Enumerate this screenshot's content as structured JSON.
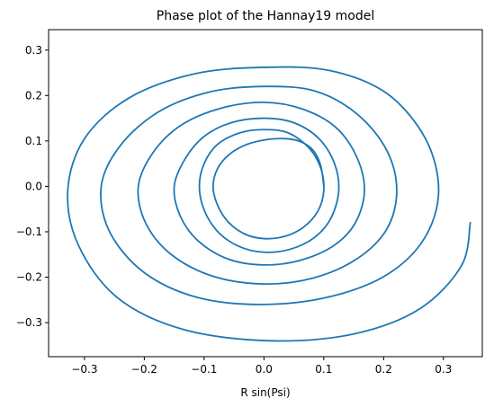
{
  "chart_data": {
    "type": "line",
    "title": "Phase plot of the Hannay19 model",
    "xlabel": "R sin(Psi)",
    "ylabel": "",
    "xlim": [
      -0.36,
      0.365
    ],
    "ylim": [
      -0.375,
      0.345
    ],
    "xticks": [
      -0.3,
      -0.2,
      -0.1,
      0.0,
      0.1,
      0.2,
      0.3
    ],
    "xtick_labels": [
      "−0.3",
      "−0.2",
      "−0.1",
      "0.0",
      "0.1",
      "0.2",
      "0.3"
    ],
    "yticks": [
      -0.3,
      -0.2,
      -0.1,
      0.0,
      0.1,
      0.2,
      0.3
    ],
    "ytick_labels": [
      "−0.3",
      "−0.2",
      "−0.1",
      "0.0",
      "0.1",
      "0.2",
      "0.3"
    ],
    "grid": false,
    "series": [
      {
        "color": "#1f77b4",
        "description": "outward spiral, counter-clockwise, from (0.10, 0.00) to (0.345, -0.08)",
        "x": [
          0.1,
          0.095,
          0.083,
          0.062,
          0.035,
          0.0,
          -0.033,
          -0.06,
          -0.078,
          -0.085,
          -0.078,
          -0.06,
          -0.032,
          0.0,
          0.035,
          0.066,
          0.09,
          0.1,
          0.095,
          0.075,
          0.04,
          0.0,
          -0.04,
          -0.078,
          -0.1,
          -0.108,
          -0.1,
          -0.077,
          -0.042,
          0.0,
          0.045,
          0.085,
          0.112,
          0.125,
          0.118,
          0.092,
          0.05,
          0.0,
          -0.055,
          -0.1,
          -0.132,
          -0.15,
          -0.14,
          -0.11,
          -0.06,
          0.0,
          0.06,
          0.115,
          0.152,
          0.168,
          0.155,
          0.12,
          0.065,
          0.0,
          -0.072,
          -0.138,
          -0.185,
          -0.21,
          -0.198,
          -0.155,
          -0.085,
          0.0,
          0.082,
          0.155,
          0.205,
          0.222,
          0.205,
          0.155,
          0.085,
          0.0,
          -0.09,
          -0.175,
          -0.24,
          -0.272,
          -0.258,
          -0.2,
          -0.11,
          0.0,
          0.11,
          0.205,
          0.268,
          0.292,
          0.27,
          0.205,
          0.11,
          0.0,
          -0.115,
          -0.225,
          -0.3,
          -0.328,
          -0.31,
          -0.245,
          -0.135,
          0.01,
          0.15,
          0.26,
          0.33,
          0.345
        ],
        "y": [
          0.0,
          0.045,
          0.078,
          0.098,
          0.105,
          0.102,
          0.09,
          0.068,
          0.038,
          0.0,
          -0.04,
          -0.078,
          -0.105,
          -0.115,
          -0.11,
          -0.09,
          -0.055,
          -0.01,
          0.04,
          0.085,
          0.118,
          0.125,
          0.118,
          0.092,
          0.05,
          0.0,
          -0.052,
          -0.1,
          -0.132,
          -0.145,
          -0.138,
          -0.112,
          -0.07,
          -0.01,
          0.05,
          0.105,
          0.14,
          0.15,
          0.14,
          0.11,
          0.06,
          0.0,
          -0.065,
          -0.12,
          -0.16,
          -0.173,
          -0.163,
          -0.132,
          -0.082,
          -0.01,
          0.065,
          0.13,
          0.17,
          0.185,
          0.172,
          0.135,
          0.075,
          0.0,
          -0.08,
          -0.15,
          -0.198,
          -0.215,
          -0.202,
          -0.16,
          -0.095,
          -0.01,
          0.08,
          0.16,
          0.21,
          0.22,
          0.208,
          0.165,
          0.09,
          0.0,
          -0.1,
          -0.19,
          -0.245,
          -0.26,
          -0.243,
          -0.195,
          -0.115,
          -0.01,
          0.105,
          0.205,
          0.255,
          0.262,
          0.248,
          0.195,
          0.105,
          -0.01,
          -0.13,
          -0.245,
          -0.315,
          -0.34,
          -0.325,
          -0.27,
          -0.175,
          -0.08
        ]
      }
    ]
  }
}
